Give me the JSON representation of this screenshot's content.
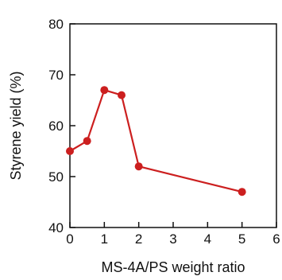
{
  "chart_data": {
    "type": "line",
    "title": "",
    "xlabel": "MS-4A/PS weight ratio",
    "ylabel": "Styrene yield (%)",
    "xlim": [
      0,
      6
    ],
    "ylim": [
      40,
      80
    ],
    "xticks": [
      0,
      1,
      2,
      3,
      4,
      5,
      6
    ],
    "yticks": [
      40,
      50,
      60,
      70,
      80
    ],
    "grid": false,
    "legend": "none",
    "series": [
      {
        "color": "#cc1f1f",
        "x": [
          0,
          0.5,
          1,
          1.5,
          2,
          5
        ],
        "y": [
          55,
          57,
          67,
          66,
          52,
          47
        ]
      }
    ]
  }
}
